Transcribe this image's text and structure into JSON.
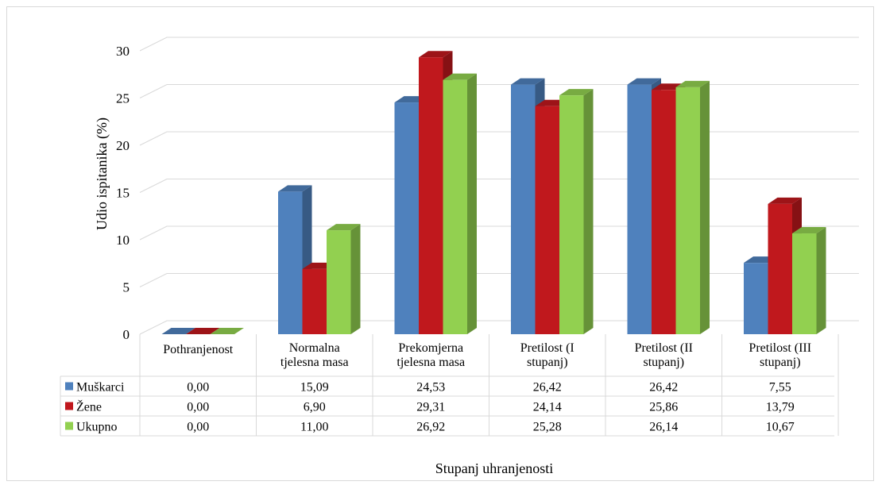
{
  "chart_data": {
    "type": "bar",
    "title": "",
    "xlabel": "Stupanj uhranjenosti",
    "ylabel": "Udio ispitanika (%)",
    "ylim": [
      0,
      30
    ],
    "yticks": [
      "0",
      "5",
      "10",
      "15",
      "20",
      "25",
      "30"
    ],
    "grid": true,
    "legend": "data table",
    "categories": [
      [
        "Pothranjenost"
      ],
      [
        "Normalna",
        "tjelesna masa"
      ],
      [
        "Prekomjerna",
        "tjelesna masa"
      ],
      [
        "Pretilost (I",
        "stupanj)"
      ],
      [
        "Pretilost (II",
        "stupanj)"
      ],
      [
        "Pretilost (III",
        "stupanj)"
      ]
    ],
    "series": [
      {
        "name": "Muškarci",
        "color": "#4f81bd",
        "values": [
          0.0,
          15.09,
          24.53,
          26.42,
          26.42,
          7.55
        ],
        "labels": [
          "0,00",
          "15,09",
          "24,53",
          "26,42",
          "26,42",
          "7,55"
        ]
      },
      {
        "name": "Žene",
        "color": "#c0181d",
        "values": [
          0.0,
          6.9,
          29.31,
          24.14,
          25.86,
          13.79
        ],
        "labels": [
          "0,00",
          "6,90",
          "29,31",
          "24,14",
          "25,86",
          "13,79"
        ]
      },
      {
        "name": "Ukupno",
        "color": "#92d050",
        "values": [
          0.0,
          11.0,
          26.92,
          25.28,
          26.14,
          10.67
        ],
        "labels": [
          "0,00",
          "11,00",
          "26,92",
          "25,28",
          "26,14",
          "10,67"
        ]
      }
    ]
  }
}
